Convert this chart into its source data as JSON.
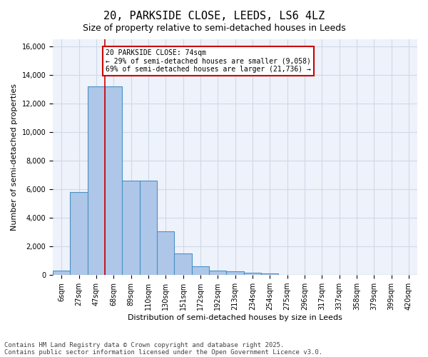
{
  "title": "20, PARKSIDE CLOSE, LEEDS, LS6 4LZ",
  "subtitle": "Size of property relative to semi-detached houses in Leeds",
  "xlabel": "Distribution of semi-detached houses by size in Leeds",
  "ylabel": "Number of semi-detached properties",
  "bin_labels": [
    "6sqm",
    "27sqm",
    "47sqm",
    "68sqm",
    "89sqm",
    "110sqm",
    "130sqm",
    "151sqm",
    "172sqm",
    "192sqm",
    "213sqm",
    "234sqm",
    "254sqm",
    "275sqm",
    "296sqm",
    "317sqm",
    "337sqm",
    "358sqm",
    "379sqm",
    "399sqm",
    "420sqm"
  ],
  "bar_values": [
    300,
    5800,
    13200,
    13200,
    6600,
    6600,
    3050,
    1500,
    600,
    320,
    270,
    150,
    100,
    0,
    0,
    0,
    0,
    0,
    0,
    0,
    0
  ],
  "bar_color": "#aec6e8",
  "bar_edge_color": "#4a90c4",
  "grid_color": "#d0d8e8",
  "background_color": "#eef2fa",
  "annotation_text": "20 PARKSIDE CLOSE: 74sqm\n← 29% of semi-detached houses are smaller (9,058)\n69% of semi-detached houses are larger (21,736) →",
  "annotation_box_color": "#ffffff",
  "annotation_border_color": "#cc0000",
  "red_line_x": 2.5,
  "ylim": [
    0,
    16500
  ],
  "yticks": [
    0,
    2000,
    4000,
    6000,
    8000,
    10000,
    12000,
    14000,
    16000
  ],
  "footer_line1": "Contains HM Land Registry data © Crown copyright and database right 2025.",
  "footer_line2": "Contains public sector information licensed under the Open Government Licence v3.0.",
  "title_fontsize": 11,
  "subtitle_fontsize": 9,
  "axis_label_fontsize": 8,
  "tick_fontsize": 7,
  "footer_fontsize": 6.5,
  "annotation_fontsize": 7
}
